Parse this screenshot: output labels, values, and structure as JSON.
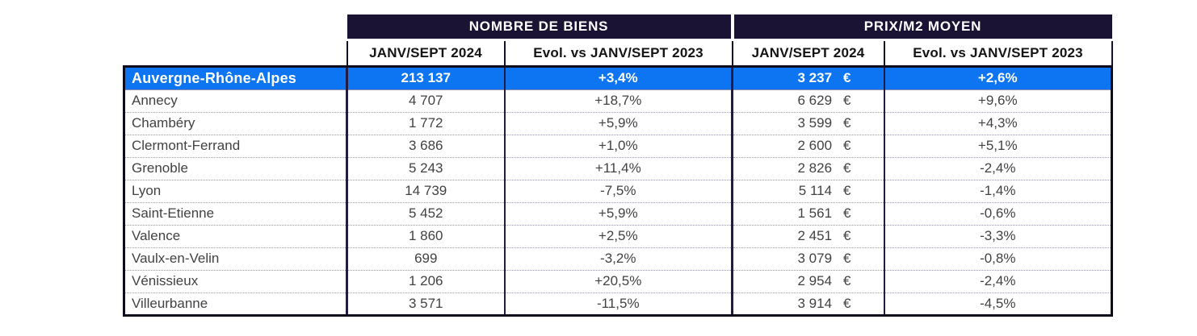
{
  "chart_data": {
    "type": "table",
    "title": "",
    "section_headers": [
      "NOMBRE DE BIENS",
      "PRIX/M2 MOYEN"
    ],
    "column_headers": [
      "JANV/SEPT 2024",
      "Evol. vs JANV/SEPT 2023",
      "JANV/SEPT 2024",
      "Evol. vs JANV/SEPT 2023"
    ],
    "currency": "€",
    "rows": [
      {
        "name": "Auvergne-Rhône-Alpes",
        "biens": "213 137",
        "biens_evol": "+3,4%",
        "prix": "3 237",
        "prix_evol": "+2,6%",
        "highlight": true
      },
      {
        "name": "Annecy",
        "biens": "4 707",
        "biens_evol": "+18,7%",
        "prix": "6 629",
        "prix_evol": "+9,6%"
      },
      {
        "name": "Chambéry",
        "biens": "1 772",
        "biens_evol": "+5,9%",
        "prix": "3 599",
        "prix_evol": "+4,3%"
      },
      {
        "name": "Clermont-Ferrand",
        "biens": "3 686",
        "biens_evol": "+1,0%",
        "prix": "2 600",
        "prix_evol": "+5,1%"
      },
      {
        "name": "Grenoble",
        "biens": "5 243",
        "biens_evol": "+11,4%",
        "prix": "2 826",
        "prix_evol": "-2,4%"
      },
      {
        "name": "Lyon",
        "biens": "14 739",
        "biens_evol": "-7,5%",
        "prix": "5 114",
        "prix_evol": "-1,4%"
      },
      {
        "name": "Saint-Etienne",
        "biens": "5 452",
        "biens_evol": "+5,9%",
        "prix": "1 561",
        "prix_evol": "-0,6%"
      },
      {
        "name": "Valence",
        "biens": "1 860",
        "biens_evol": "+2,5%",
        "prix": "2 451",
        "prix_evol": "-3,3%"
      },
      {
        "name": "Vaulx-en-Velin",
        "biens": "699",
        "biens_evol": "-3,2%",
        "prix": "3 079",
        "prix_evol": "-0,8%"
      },
      {
        "name": "Vénissieux",
        "biens": "1 206",
        "biens_evol": "+20,5%",
        "prix": "2 954",
        "prix_evol": "-2,4%"
      },
      {
        "name": "Villeurbanne",
        "biens": "3 571",
        "biens_evol": "-11,5%",
        "prix": "3 914",
        "prix_evol": "-4,5%"
      }
    ],
    "colors": {
      "section_header_bg": "#1b1333",
      "section_header_text": "#ffffff",
      "highlight_row_bg": "#0d74f2",
      "highlight_row_text": "#ffffff",
      "outer_border": "#0d0b1c",
      "inner_border": "#221c44",
      "body_text": "#424242"
    },
    "layout": {
      "grid": "dotted row separators",
      "legend": "none"
    }
  }
}
